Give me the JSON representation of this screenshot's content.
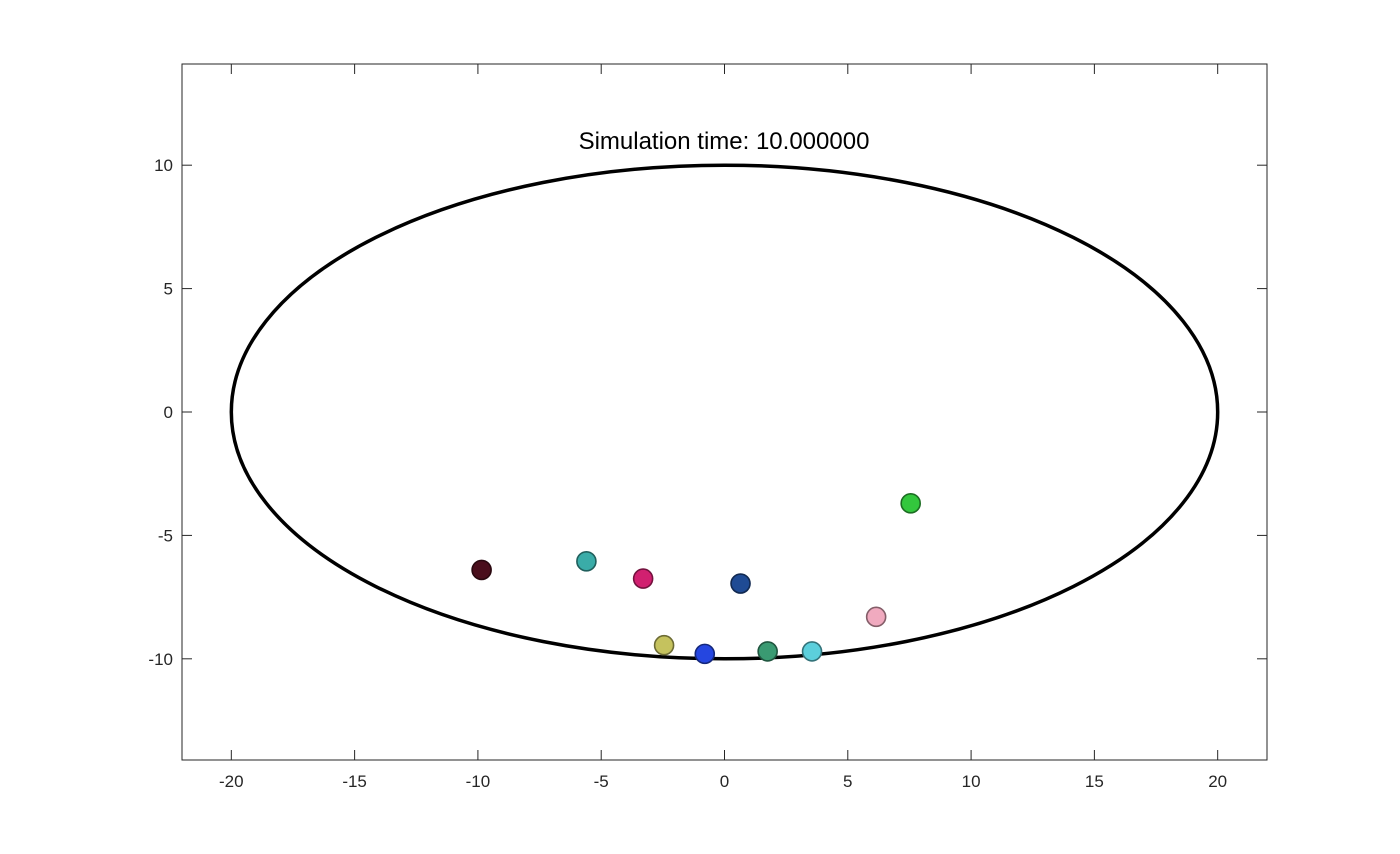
{
  "chart_data": {
    "type": "scatter",
    "title": "Simulation time: 10.000000",
    "xlabel": "",
    "ylabel": "",
    "xlim": [
      -22,
      22
    ],
    "ylim": [
      -14.1,
      14.1
    ],
    "xticks": [
      -20,
      -15,
      -10,
      -5,
      0,
      5,
      10,
      15,
      20
    ],
    "yticks": [
      -10,
      -5,
      0,
      5,
      10
    ],
    "grid": false,
    "boundary": {
      "shape": "ellipse",
      "center": [
        0,
        0
      ],
      "semi_axis_x": 20,
      "semi_axis_y": 10,
      "color": "#000000"
    },
    "points": [
      {
        "x": -9.85,
        "y": -6.4,
        "color": "#4a0e1c"
      },
      {
        "x": -5.6,
        "y": -6.05,
        "color": "#3aaca8"
      },
      {
        "x": -3.3,
        "y": -6.75,
        "color": "#d12070"
      },
      {
        "x": 0.65,
        "y": -6.95,
        "color": "#1f4b94"
      },
      {
        "x": 7.55,
        "y": -3.7,
        "color": "#33c73d"
      },
      {
        "x": 6.15,
        "y": -8.3,
        "color": "#f0aabf"
      },
      {
        "x": -2.45,
        "y": -9.45,
        "color": "#c5c25e"
      },
      {
        "x": -0.8,
        "y": -9.8,
        "color": "#2546e0"
      },
      {
        "x": 1.75,
        "y": -9.7,
        "color": "#3a9a72"
      },
      {
        "x": 3.55,
        "y": -9.7,
        "color": "#5ccfdc"
      }
    ]
  }
}
